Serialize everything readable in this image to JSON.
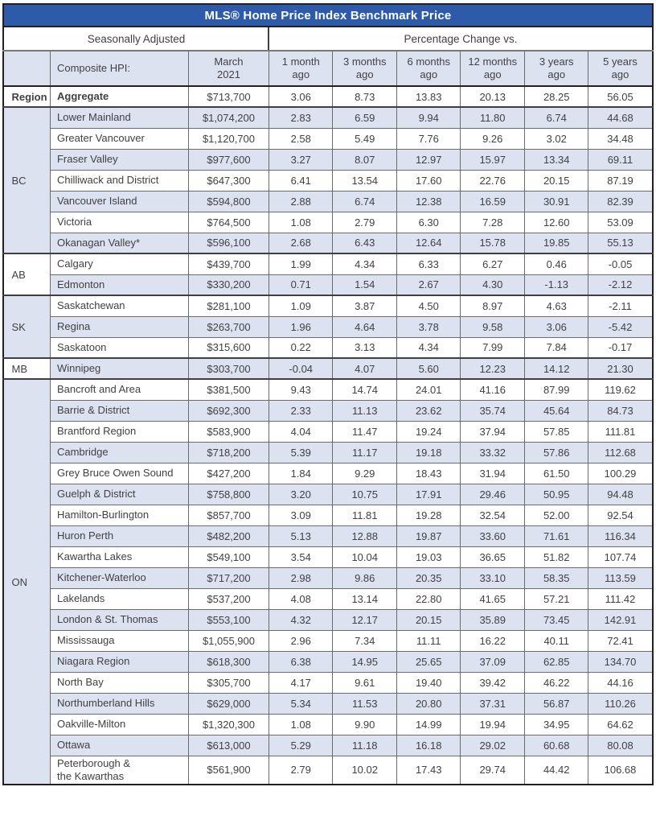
{
  "title": "MLS® Home Price Index Benchmark Price",
  "header": {
    "left_section": "Seasonally Adjusted",
    "right_section": "Percentage Change vs.",
    "composite_label": "Composite HPI:",
    "month_label": "March\n2021",
    "change_columns": [
      "1 month\nago",
      "3 months\nago",
      "6 months\nago",
      "12 months\nago",
      "3 years\nago",
      "5 years\nago"
    ]
  },
  "groups": [
    {
      "region": "Region",
      "rows": [
        {
          "name": "Aggregate",
          "bold": true,
          "price": "$713,700",
          "changes": [
            "3.06",
            "8.73",
            "13.83",
            "20.13",
            "28.25",
            "56.05"
          ]
        }
      ]
    },
    {
      "region": "BC",
      "rows": [
        {
          "name": "Lower Mainland",
          "price": "$1,074,200",
          "changes": [
            "2.83",
            "6.59",
            "9.94",
            "11.80",
            "6.74",
            "44.68"
          ]
        },
        {
          "name": "Greater Vancouver",
          "price": "$1,120,700",
          "changes": [
            "2.58",
            "5.49",
            "7.76",
            "9.26",
            "3.02",
            "34.48"
          ]
        },
        {
          "name": "Fraser Valley",
          "price": "$977,600",
          "changes": [
            "3.27",
            "8.07",
            "12.97",
            "15.97",
            "13.34",
            "69.11"
          ]
        },
        {
          "name": "Chilliwack and District",
          "price": "$647,300",
          "changes": [
            "6.41",
            "13.54",
            "17.60",
            "22.76",
            "20.15",
            "87.19"
          ]
        },
        {
          "name": "Vancouver Island",
          "price": "$594,800",
          "changes": [
            "2.88",
            "6.74",
            "12.38",
            "16.59",
            "30.91",
            "82.39"
          ]
        },
        {
          "name": "Victoria",
          "price": "$764,500",
          "changes": [
            "1.08",
            "2.79",
            "6.30",
            "7.28",
            "12.60",
            "53.09"
          ]
        },
        {
          "name": "Okanagan Valley*",
          "price": "$596,100",
          "changes": [
            "2.68",
            "6.43",
            "12.64",
            "15.78",
            "19.85",
            "55.13"
          ]
        }
      ]
    },
    {
      "region": "AB",
      "rows": [
        {
          "name": "Calgary",
          "price": "$439,700",
          "changes": [
            "1.99",
            "4.34",
            "6.33",
            "6.27",
            "0.46",
            "-0.05"
          ]
        },
        {
          "name": "Edmonton",
          "price": "$330,200",
          "changes": [
            "0.71",
            "1.54",
            "2.67",
            "4.30",
            "-1.13",
            "-2.12"
          ]
        }
      ]
    },
    {
      "region": "SK",
      "rows": [
        {
          "name": "Saskatchewan",
          "price": "$281,100",
          "changes": [
            "1.09",
            "3.87",
            "4.50",
            "8.97",
            "4.63",
            "-2.11"
          ]
        },
        {
          "name": "Regina",
          "price": "$263,700",
          "changes": [
            "1.96",
            "4.64",
            "3.78",
            "9.58",
            "3.06",
            "-5.42"
          ]
        },
        {
          "name": "Saskatoon",
          "price": "$315,600",
          "changes": [
            "0.22",
            "3.13",
            "4.34",
            "7.99",
            "7.84",
            "-0.17"
          ]
        }
      ]
    },
    {
      "region": "MB",
      "rows": [
        {
          "name": "Winnipeg",
          "price": "$303,700",
          "changes": [
            "-0.04",
            "4.07",
            "5.60",
            "12.23",
            "14.12",
            "21.30"
          ]
        }
      ]
    },
    {
      "region": "ON",
      "rows": [
        {
          "name": "Bancroft and Area",
          "price": "$381,500",
          "changes": [
            "9.43",
            "14.74",
            "24.01",
            "41.16",
            "87.99",
            "119.62"
          ]
        },
        {
          "name": "Barrie & District",
          "price": "$692,300",
          "changes": [
            "2.33",
            "11.13",
            "23.62",
            "35.74",
            "45.64",
            "84.73"
          ]
        },
        {
          "name": "Brantford Region",
          "price": "$583,900",
          "changes": [
            "4.04",
            "11.47",
            "19.24",
            "37.94",
            "57.85",
            "111.81"
          ]
        },
        {
          "name": "Cambridge",
          "price": "$718,200",
          "changes": [
            "5.39",
            "11.17",
            "19.18",
            "33.32",
            "57.86",
            "112.68"
          ]
        },
        {
          "name": "Grey Bruce Owen Sound",
          "price": "$427,200",
          "changes": [
            "1.84",
            "9.29",
            "18.43",
            "31.94",
            "61.50",
            "100.29"
          ]
        },
        {
          "name": "Guelph & District",
          "price": "$758,800",
          "changes": [
            "3.20",
            "10.75",
            "17.91",
            "29.46",
            "50.95",
            "94.48"
          ]
        },
        {
          "name": "Hamilton-Burlington",
          "price": "$857,700",
          "changes": [
            "3.09",
            "11.81",
            "19.28",
            "32.54",
            "52.00",
            "92.54"
          ]
        },
        {
          "name": "Huron Perth",
          "price": "$482,200",
          "changes": [
            "5.13",
            "12.88",
            "19.87",
            "33.60",
            "71.61",
            "116.34"
          ]
        },
        {
          "name": "Kawartha Lakes",
          "price": "$549,100",
          "changes": [
            "3.54",
            "10.04",
            "19.03",
            "36.65",
            "51.82",
            "107.74"
          ]
        },
        {
          "name": "Kitchener-Waterloo",
          "price": "$717,200",
          "changes": [
            "2.98",
            "9.86",
            "20.35",
            "33.10",
            "58.35",
            "113.59"
          ]
        },
        {
          "name": "Lakelands",
          "price": "$537,200",
          "changes": [
            "4.08",
            "13.14",
            "22.80",
            "41.65",
            "57.21",
            "111.42"
          ]
        },
        {
          "name": "London & St. Thomas",
          "price": "$553,100",
          "changes": [
            "4.32",
            "12.17",
            "20.15",
            "35.89",
            "73.45",
            "142.91"
          ]
        },
        {
          "name": "Mississauga",
          "price": "$1,055,900",
          "changes": [
            "2.96",
            "7.34",
            "11.11",
            "16.22",
            "40.11",
            "72.41"
          ]
        },
        {
          "name": "Niagara Region",
          "price": "$618,300",
          "changes": [
            "6.38",
            "14.95",
            "25.65",
            "37.09",
            "62.85",
            "134.70"
          ]
        },
        {
          "name": "North Bay",
          "price": "$305,700",
          "changes": [
            "4.17",
            "9.61",
            "19.40",
            "39.42",
            "46.22",
            "44.16"
          ]
        },
        {
          "name": "Northumberland Hills",
          "price": "$629,000",
          "changes": [
            "5.34",
            "11.53",
            "20.80",
            "37.31",
            "56.87",
            "110.26"
          ]
        },
        {
          "name": "Oakville-Milton",
          "price": "$1,320,300",
          "changes": [
            "1.08",
            "9.90",
            "14.99",
            "19.94",
            "34.95",
            "64.62"
          ]
        },
        {
          "name": "Ottawa",
          "price": "$613,000",
          "changes": [
            "5.29",
            "11.18",
            "16.18",
            "29.02",
            "60.68",
            "80.08"
          ]
        },
        {
          "name": "Peterborough &\nthe Kawarthas",
          "price": "$561,900",
          "changes": [
            "2.79",
            "10.02",
            "17.43",
            "29.74",
            "44.42",
            "106.68"
          ]
        }
      ]
    }
  ],
  "colors": {
    "header_bg": "#2d5ba9",
    "row_alt_bg": "#dde2f1",
    "border_dark": "#231f20",
    "border_gray": "#6a6b6e",
    "text": "#414144"
  }
}
